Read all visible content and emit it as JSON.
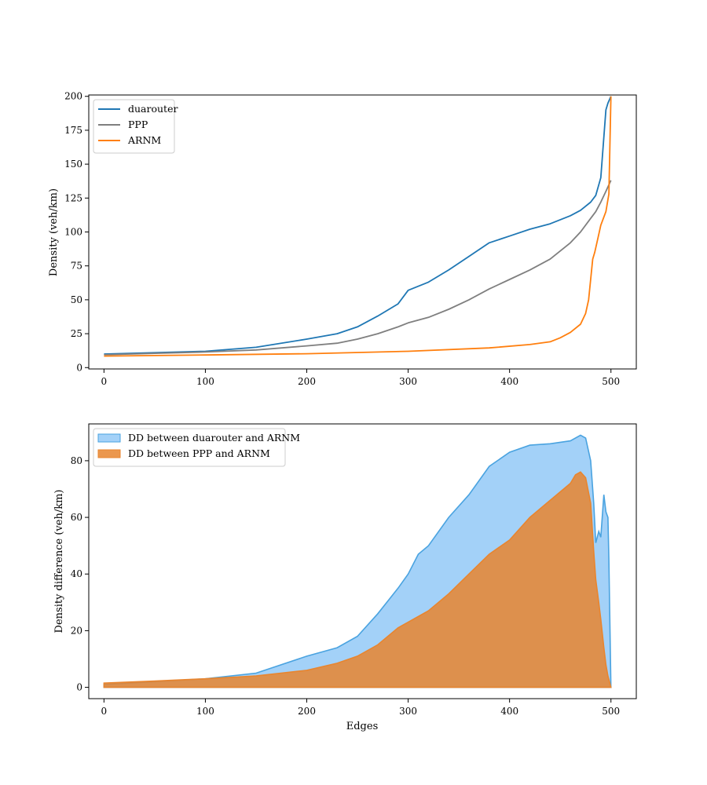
{
  "chart_data": [
    {
      "type": "line",
      "title": "",
      "xlabel": "",
      "ylabel": "Density (veh/km)",
      "xlim": [
        -15,
        525
      ],
      "ylim": [
        -1,
        201
      ],
      "xticks": [
        0,
        100,
        200,
        300,
        400,
        500
      ],
      "yticks": [
        0,
        25,
        50,
        75,
        100,
        125,
        150,
        175,
        200
      ],
      "grid": false,
      "legend_position": "top-left",
      "series": [
        {
          "name": "duarouter",
          "color": "#1f77b4",
          "x": [
            0,
            50,
            100,
            150,
            200,
            230,
            250,
            270,
            290,
            300,
            320,
            340,
            360,
            380,
            400,
            420,
            440,
            460,
            470,
            480,
            485,
            490,
            493,
            495,
            497,
            500
          ],
          "y": [
            10,
            11,
            12,
            15,
            21,
            25,
            30,
            38,
            47,
            57,
            63,
            72,
            82,
            92,
            97,
            102,
            106,
            112,
            116,
            122,
            127,
            140,
            170,
            190,
            195,
            200
          ]
        },
        {
          "name": "PPP",
          "color": "#7f7f7f",
          "x": [
            0,
            50,
            100,
            150,
            200,
            230,
            250,
            270,
            290,
            300,
            320,
            340,
            360,
            380,
            400,
            420,
            440,
            460,
            470,
            480,
            485,
            490,
            495,
            500
          ],
          "y": [
            9.5,
            10.5,
            11.5,
            13,
            16,
            18,
            21,
            25,
            30,
            33,
            37,
            43,
            50,
            58,
            65,
            72,
            80,
            92,
            100,
            110,
            115,
            122,
            130,
            138
          ]
        },
        {
          "name": "ARNM",
          "color": "#ff7f0e",
          "x": [
            0,
            100,
            200,
            300,
            380,
            420,
            440,
            450,
            460,
            470,
            475,
            478,
            480,
            482,
            484,
            487,
            490,
            495,
            498,
            500
          ],
          "y": [
            8.5,
            9.3,
            10.2,
            12,
            14.5,
            17,
            19,
            22,
            26,
            32,
            40,
            50,
            65,
            80,
            85,
            95,
            105,
            115,
            128,
            200
          ]
        }
      ]
    },
    {
      "type": "area",
      "title": "",
      "xlabel": "Edges",
      "ylabel": "Density difference (veh/km)",
      "xlim": [
        -15,
        525
      ],
      "ylim": [
        -4,
        93
      ],
      "xticks": [
        0,
        100,
        200,
        300,
        400,
        500
      ],
      "yticks": [
        0,
        20,
        40,
        60,
        80
      ],
      "grid": false,
      "legend_position": "top-left",
      "series": [
        {
          "name": "DD between duarouter and ARNM",
          "color": "#7fbff5",
          "edge_color": "#4aa3e0",
          "x": [
            0,
            50,
            100,
            150,
            200,
            230,
            250,
            270,
            290,
            300,
            310,
            320,
            340,
            360,
            380,
            400,
            420,
            440,
            460,
            470,
            475,
            480,
            483,
            485,
            488,
            490,
            493,
            495,
            497,
            498,
            500
          ],
          "y": [
            1,
            2,
            3,
            5,
            11,
            14,
            18,
            26,
            35,
            40,
            47,
            50,
            60,
            68,
            78,
            83,
            85.5,
            86,
            87,
            89,
            88,
            80,
            65,
            51,
            55,
            53,
            68,
            62,
            60,
            45,
            0
          ]
        },
        {
          "name": "DD between PPP and ARNM",
          "color": "#e8852f",
          "edge_color": "#e8852f",
          "x": [
            0,
            50,
            100,
            150,
            200,
            230,
            250,
            270,
            290,
            300,
            320,
            340,
            360,
            380,
            400,
            420,
            440,
            460,
            465,
            470,
            475,
            480,
            483,
            485,
            488,
            490,
            493,
            495,
            497,
            500
          ],
          "y": [
            1.5,
            2.2,
            3,
            4,
            6,
            8.5,
            11,
            15,
            21,
            23,
            27,
            33,
            40,
            47,
            52,
            60,
            66,
            72,
            75,
            76,
            74,
            65,
            48,
            38,
            30,
            24,
            14,
            8,
            4,
            0
          ]
        }
      ]
    }
  ]
}
